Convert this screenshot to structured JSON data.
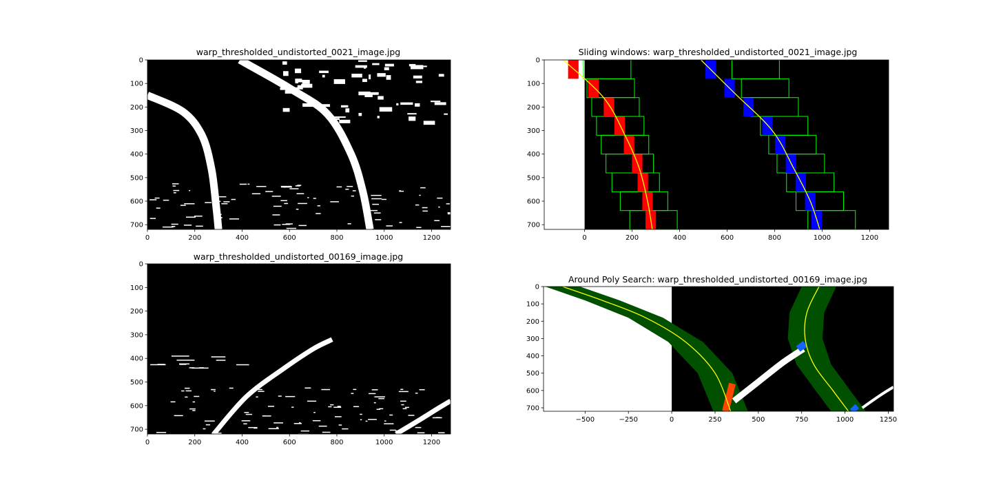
{
  "colors": {
    "background": "#ffffff",
    "image_black": "#000000",
    "lane_white": "#ffffff",
    "left_pixels_red": "#ff0000",
    "right_pixels_blue": "#0000ff",
    "windows_green": "#00ff00",
    "fit_yellow": "#ffff00",
    "search_band_green": "#005000",
    "left_pixels_orange": "#ff4500",
    "right_pixels_lightblue": "#1464ff"
  },
  "chart_data": [
    {
      "type": "image",
      "title": "warp_thresholded_undistorted_0021_image.jpg",
      "xlim": [
        0,
        1280
      ],
      "ylim": [
        720,
        0
      ],
      "image_extent_x": [
        0,
        1280
      ],
      "xticks": [
        0,
        200,
        400,
        600,
        800,
        1000,
        1200
      ],
      "yticks": [
        0,
        100,
        200,
        300,
        400,
        500,
        600,
        700
      ],
      "content": "binary-threshold",
      "lane_curves": [
        {
          "x": [
            0,
            150,
            230,
            270,
            290,
            300
          ],
          "y": [
            150,
            220,
            320,
            460,
            620,
            720
          ]
        },
        {
          "x": [
            390,
            600,
            760,
            860,
            910,
            940
          ],
          "y": [
            0,
            120,
            230,
            400,
            560,
            720
          ]
        }
      ]
    },
    {
      "type": "image",
      "title": "Sliding windows: warp_thresholded_undistorted_0021_image.jpg",
      "xlim": [
        -170,
        1280
      ],
      "ylim": [
        720,
        0
      ],
      "image_extent_x": [
        0,
        1280
      ],
      "xticks": [
        0,
        200,
        400,
        600,
        800,
        1000,
        1200
      ],
      "yticks": [
        0,
        100,
        200,
        300,
        400,
        500,
        600,
        700
      ],
      "content": "sliding-windows",
      "fits": [
        {
          "name": "left",
          "x": [
            -90,
            80,
            170,
            230,
            265,
            285
          ],
          "y": [
            0,
            160,
            320,
            460,
            600,
            720
          ]
        },
        {
          "name": "right",
          "x": [
            490,
            630,
            790,
            880,
            950,
            990
          ],
          "y": [
            0,
            140,
            300,
            460,
            600,
            720
          ]
        }
      ],
      "windows": [
        {
          "side": "left",
          "x_center": [
            290,
            250,
            215,
            190,
            170,
            150,
            130,
            110,
            95
          ],
          "x_half_width": 100
        },
        {
          "side": "right",
          "x_center": [
            1040,
            990,
            950,
            910,
            875,
            840,
            800,
            760,
            720
          ],
          "x_half_width": 100
        }
      ]
    },
    {
      "type": "image",
      "title": "warp_thresholded_undistorted_00169_image.jpg",
      "xlim": [
        0,
        1280
      ],
      "ylim": [
        720,
        0
      ],
      "image_extent_x": [
        0,
        1280
      ],
      "xticks": [
        0,
        200,
        400,
        600,
        800,
        1000,
        1200
      ],
      "yticks": [
        0,
        100,
        200,
        300,
        400,
        500,
        600,
        700
      ],
      "content": "binary-threshold",
      "lane_curves": [
        {
          "x": [
            280,
            420,
            580,
            700,
            780
          ],
          "y": [
            720,
            560,
            440,
            360,
            320
          ]
        },
        {
          "x": [
            1050,
            1150,
            1230,
            1280
          ],
          "y": [
            720,
            660,
            610,
            580
          ]
        }
      ]
    },
    {
      "type": "image",
      "title": "Around Poly Search: warp_thresholded_undistorted_00169_image.jpg",
      "xlim": [
        -740,
        1280
      ],
      "ylim": [
        720,
        0
      ],
      "image_extent_x": [
        0,
        1280
      ],
      "xticks": [
        -500,
        -250,
        0,
        250,
        500,
        750,
        1000,
        1250
      ],
      "yticks": [
        0,
        100,
        200,
        300,
        400,
        500,
        600,
        700
      ],
      "content": "poly-search",
      "fits": [
        {
          "name": "left",
          "x": [
            -630,
            -400,
            -150,
            80,
            250,
            340
          ],
          "y": [
            0,
            80,
            180,
            320,
            500,
            720
          ]
        },
        {
          "name": "right",
          "x": [
            850,
            780,
            770,
            820,
            930,
            1020
          ],
          "y": [
            0,
            150,
            300,
            450,
            600,
            720
          ]
        }
      ],
      "search_margin": 100
    }
  ]
}
